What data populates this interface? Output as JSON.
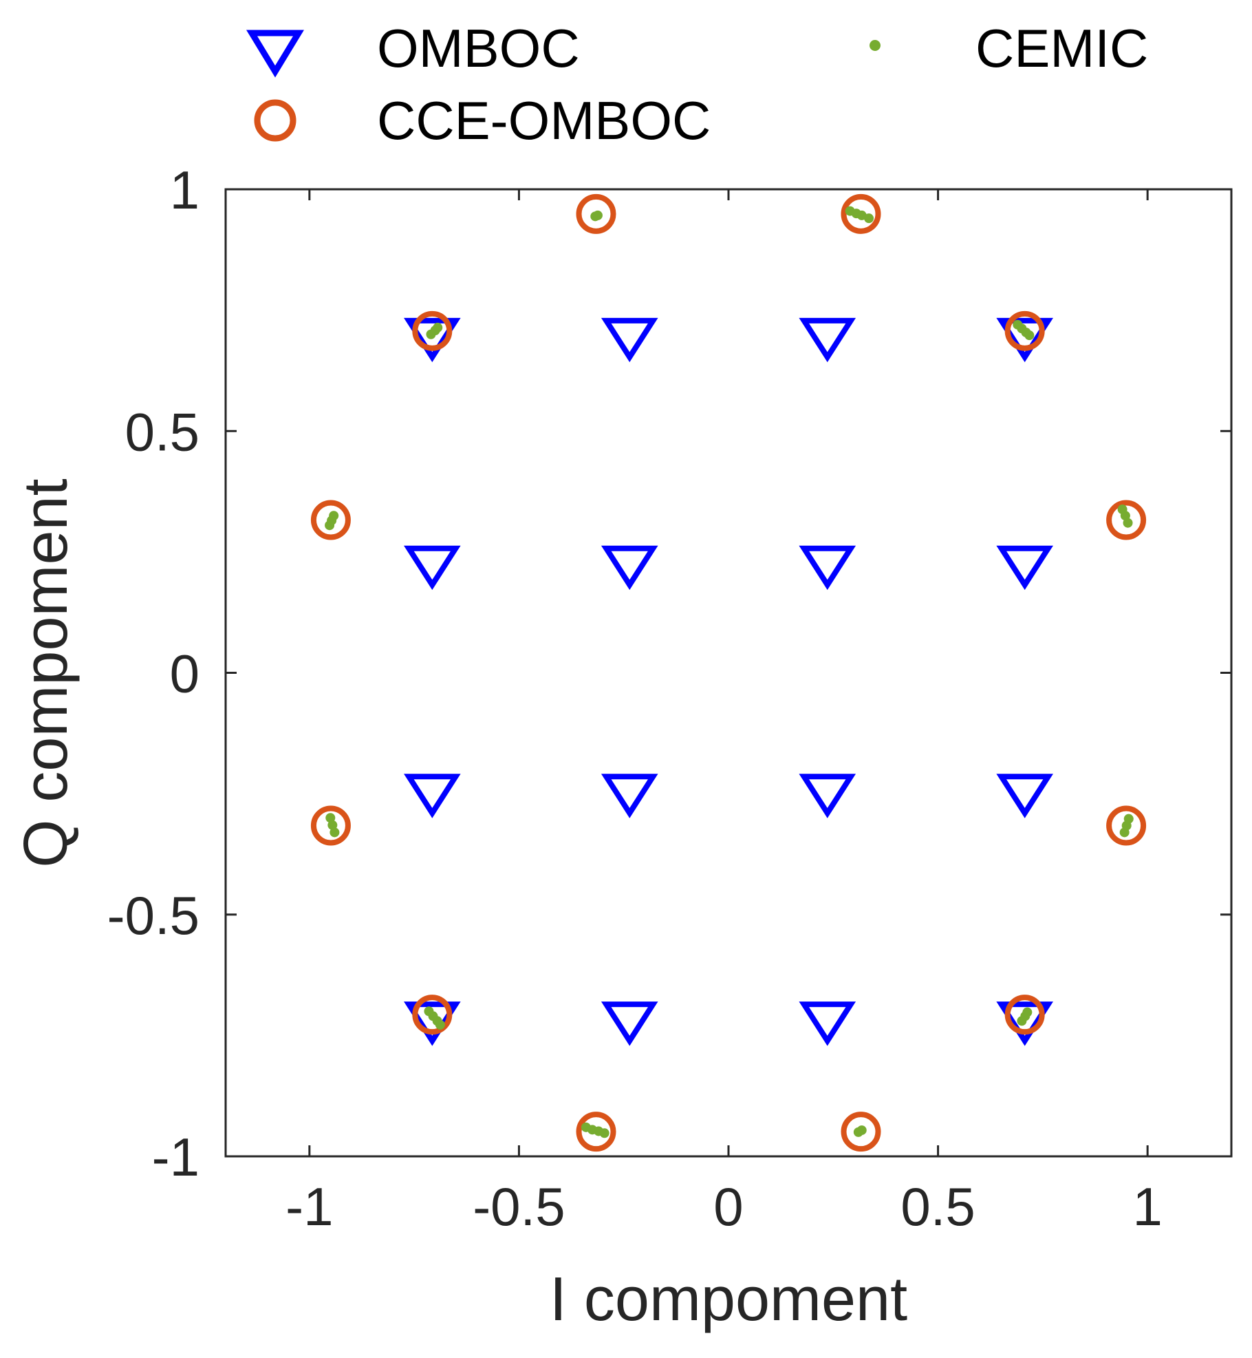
{
  "chart_data": {
    "type": "scatter",
    "title": "",
    "xlabel": "I compoment",
    "ylabel": "Q compoment",
    "xlim": [
      -1.2,
      1.2
    ],
    "ylim": [
      -1,
      1
    ],
    "xticks": [
      -1,
      -0.5,
      0,
      0.5,
      1
    ],
    "xtick_labels": [
      "-1",
      "-0.5",
      "0",
      "0.5",
      "1"
    ],
    "yticks": [
      -1,
      -0.5,
      0,
      0.5,
      1
    ],
    "ytick_labels": [
      "-1",
      "-0.5",
      "0",
      "0.5",
      "1"
    ],
    "grid": false,
    "legend_position": "top",
    "colors": {
      "omboc": "#0000ff",
      "cce_omboc": "#d95319",
      "cemic": "#77ac30",
      "axis": "#262626"
    },
    "series": [
      {
        "name": "OMBOC",
        "marker": "triangle-down",
        "points": [
          [
            -0.707,
            0.707
          ],
          [
            -0.236,
            0.707
          ],
          [
            0.236,
            0.707
          ],
          [
            0.707,
            0.707
          ],
          [
            -0.707,
            0.236
          ],
          [
            -0.236,
            0.236
          ],
          [
            0.236,
            0.236
          ],
          [
            0.707,
            0.236
          ],
          [
            -0.707,
            -0.236
          ],
          [
            -0.236,
            -0.236
          ],
          [
            0.236,
            -0.236
          ],
          [
            0.707,
            -0.236
          ],
          [
            -0.707,
            -0.707
          ],
          [
            -0.236,
            -0.707
          ],
          [
            0.236,
            -0.707
          ],
          [
            0.707,
            -0.707
          ]
        ]
      },
      {
        "name": "CCE-OMBOC",
        "marker": "circle",
        "points": [
          [
            -0.316,
            0.949
          ],
          [
            0.316,
            0.949
          ],
          [
            -0.707,
            0.707
          ],
          [
            0.707,
            0.707
          ],
          [
            -0.949,
            0.316
          ],
          [
            0.949,
            0.316
          ],
          [
            -0.949,
            -0.316
          ],
          [
            0.949,
            -0.316
          ],
          [
            -0.707,
            -0.707
          ],
          [
            0.707,
            -0.707
          ],
          [
            -0.316,
            -0.949
          ],
          [
            0.316,
            -0.949
          ]
        ]
      },
      {
        "name": "CEMIC",
        "marker": "dot",
        "points": [
          [
            -0.318,
            0.944
          ],
          [
            -0.312,
            0.946
          ],
          [
            0.29,
            0.955
          ],
          [
            0.305,
            0.95
          ],
          [
            0.318,
            0.946
          ],
          [
            0.335,
            0.94
          ],
          [
            -0.71,
            0.7
          ],
          [
            -0.7,
            0.708
          ],
          [
            -0.694,
            0.714
          ],
          [
            0.69,
            0.72
          ],
          [
            0.7,
            0.712
          ],
          [
            0.71,
            0.704
          ],
          [
            0.718,
            0.698
          ],
          [
            -0.952,
            0.305
          ],
          [
            -0.947,
            0.315
          ],
          [
            -0.942,
            0.325
          ],
          [
            0.94,
            0.338
          ],
          [
            0.947,
            0.325
          ],
          [
            0.953,
            0.31
          ],
          [
            -0.95,
            -0.3
          ],
          [
            -0.945,
            -0.315
          ],
          [
            -0.94,
            -0.33
          ],
          [
            0.945,
            -0.33
          ],
          [
            0.95,
            -0.316
          ],
          [
            0.955,
            -0.302
          ],
          [
            -0.715,
            -0.7
          ],
          [
            -0.705,
            -0.71
          ],
          [
            -0.695,
            -0.72
          ],
          [
            -0.688,
            -0.728
          ],
          [
            0.7,
            -0.72
          ],
          [
            0.708,
            -0.71
          ],
          [
            0.713,
            -0.702
          ],
          [
            -0.34,
            -0.94
          ],
          [
            -0.325,
            -0.945
          ],
          [
            -0.31,
            -0.948
          ],
          [
            -0.296,
            -0.952
          ],
          [
            0.31,
            -0.95
          ],
          [
            0.318,
            -0.946
          ]
        ]
      }
    ]
  }
}
